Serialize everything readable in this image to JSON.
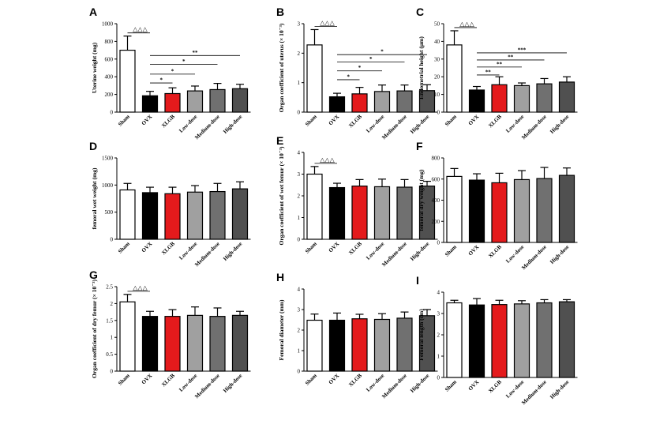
{
  "chart_data": [
    {
      "panel": "A",
      "type": "bar",
      "ylabel": "Uterine weight (mg)",
      "ylim": [
        0,
        1000
      ],
      "yticks": [
        0,
        200,
        400,
        600,
        800,
        1000
      ],
      "categories": [
        "Sham",
        "OVX",
        "XLGB",
        "Low-dose",
        "Medium-dose",
        "High-dose"
      ],
      "values": [
        700,
        185,
        210,
        240,
        255,
        265
      ],
      "errors": [
        160,
        50,
        65,
        55,
        70,
        50
      ],
      "triangle": "△△△",
      "sig_brackets": [
        {
          "from": 1,
          "to": 2,
          "label": "*",
          "y": 330
        },
        {
          "from": 1,
          "to": 3,
          "label": "*",
          "y": 430
        },
        {
          "from": 1,
          "to": 4,
          "label": "*",
          "y": 540
        },
        {
          "from": 1,
          "to": 5,
          "label": "**",
          "y": 640
        }
      ]
    },
    {
      "panel": "B",
      "type": "bar",
      "ylabel": "Organ coefficient of uterus (× 10⁻³)",
      "ylim": [
        0,
        3
      ],
      "yticks": [
        0,
        1,
        2,
        3
      ],
      "categories": [
        "Sham",
        "OVX",
        "XLGB",
        "Low-dose",
        "Medium-dose",
        "High-dose"
      ],
      "values": [
        2.28,
        0.52,
        0.62,
        0.7,
        0.72,
        0.73
      ],
      "errors": [
        0.52,
        0.12,
        0.22,
        0.22,
        0.2,
        0.2
      ],
      "triangle": "△△△",
      "sig_brackets": [
        {
          "from": 1,
          "to": 2,
          "label": "*",
          "y": 1.1
        },
        {
          "from": 1,
          "to": 3,
          "label": "*",
          "y": 1.4
        },
        {
          "from": 1,
          "to": 4,
          "label": "*",
          "y": 1.7
        },
        {
          "from": 1,
          "to": 5,
          "label": "*",
          "y": 1.95
        }
      ]
    },
    {
      "panel": "C",
      "type": "bar",
      "ylabel": "Endometrial height (μm)",
      "ylim": [
        0,
        50
      ],
      "yticks": [
        0,
        10,
        20,
        30,
        40,
        50
      ],
      "categories": [
        "Sham",
        "OVX",
        "XLGB",
        "Low-dose",
        "Medium-dose",
        "High-dose"
      ],
      "values": [
        38,
        12.5,
        15.5,
        15,
        16,
        17
      ],
      "errors": [
        8,
        2,
        4.5,
        1.5,
        3,
        3
      ],
      "triangle": "△△△",
      "sig_brackets": [
        {
          "from": 1,
          "to": 2,
          "label": "**",
          "y": 21
        },
        {
          "from": 1,
          "to": 3,
          "label": "**",
          "y": 25.5
        },
        {
          "from": 1,
          "to": 4,
          "label": "**",
          "y": 29.5
        },
        {
          "from": 1,
          "to": 5,
          "label": "***",
          "y": 33.5
        }
      ]
    },
    {
      "panel": "D",
      "type": "bar",
      "ylabel": "femoral wet weight (mg)",
      "ylim": [
        0,
        1500
      ],
      "yticks": [
        0,
        500,
        1000,
        1500
      ],
      "categories": [
        "Sham",
        "OVX",
        "XLGB",
        "Low-dose",
        "Medium-dose",
        "High-dose"
      ],
      "values": [
        910,
        860,
        840,
        870,
        880,
        930
      ],
      "errors": [
        120,
        100,
        120,
        120,
        150,
        130
      ],
      "triangle": "",
      "sig_brackets": []
    },
    {
      "panel": "E",
      "type": "bar",
      "ylabel": "Organ coefficient of wet femur (× 10⁻³)",
      "ylim": [
        0,
        4
      ],
      "yticks": [
        0,
        1,
        2,
        3,
        4
      ],
      "categories": [
        "Sham",
        "OVX",
        "XLGB",
        "Low-dose",
        "Medium-dose",
        "High-dose"
      ],
      "values": [
        3.0,
        2.38,
        2.45,
        2.42,
        2.4,
        2.45
      ],
      "errors": [
        0.35,
        0.2,
        0.3,
        0.35,
        0.35,
        0.22
      ],
      "triangle": "△△△",
      "sig_brackets": []
    },
    {
      "panel": "F",
      "type": "bar",
      "ylabel": "femoral dry weight (mg)",
      "ylim": [
        0,
        800
      ],
      "yticks": [
        0,
        200,
        400,
        600,
        800
      ],
      "categories": [
        "Sham",
        "OVX",
        "XLGB",
        "Low-dose",
        "Medium-dose",
        "High-dose"
      ],
      "values": [
        625,
        590,
        565,
        595,
        605,
        635
      ],
      "errors": [
        75,
        60,
        90,
        85,
        105,
        70
      ],
      "triangle": "",
      "sig_brackets": []
    },
    {
      "panel": "G",
      "type": "bar",
      "ylabel": "Organ coefficient of dry femur (× 10⁻³)",
      "ylim": [
        0,
        2.5
      ],
      "yticks": [
        0,
        0.5,
        1.0,
        1.5,
        2.0,
        2.5
      ],
      "categories": [
        "Sham",
        "OVX",
        "XLGB",
        "Low-dose",
        "Medium-dose",
        "High-dose"
      ],
      "values": [
        2.05,
        1.62,
        1.62,
        1.65,
        1.62,
        1.65
      ],
      "errors": [
        0.22,
        0.15,
        0.2,
        0.25,
        0.25,
        0.12
      ],
      "triangle": "△△△",
      "sig_brackets": []
    },
    {
      "panel": "H",
      "type": "bar",
      "ylabel": "Femoral diameter (mm)",
      "ylim": [
        0,
        4
      ],
      "yticks": [
        0,
        1,
        2,
        3,
        4
      ],
      "categories": [
        "Sham",
        "OVX",
        "XLGB",
        "Low-dose",
        "Medium-dose",
        "High-dose"
      ],
      "values": [
        2.48,
        2.48,
        2.55,
        2.52,
        2.58,
        2.7
      ],
      "errors": [
        0.3,
        0.35,
        0.22,
        0.28,
        0.3,
        0.3
      ],
      "triangle": "",
      "sig_brackets": []
    },
    {
      "panel": "I",
      "type": "bar",
      "ylabel": "Femoral length (cm)",
      "ylim": [
        0,
        4
      ],
      "yticks": [
        0,
        1,
        2,
        3,
        4
      ],
      "categories": [
        "Sham",
        "OVX",
        "XLGB",
        "Low-dose",
        "Medium-dose",
        "High-dose"
      ],
      "values": [
        3.5,
        3.4,
        3.42,
        3.45,
        3.5,
        3.55
      ],
      "errors": [
        0.12,
        0.3,
        0.2,
        0.15,
        0.15,
        0.1
      ],
      "triangle": "",
      "sig_brackets": []
    }
  ],
  "bar_colors": [
    "#ffffff",
    "#000000",
    "#e41a1c",
    "#a0a0a0",
    "#707070",
    "#505050"
  ]
}
